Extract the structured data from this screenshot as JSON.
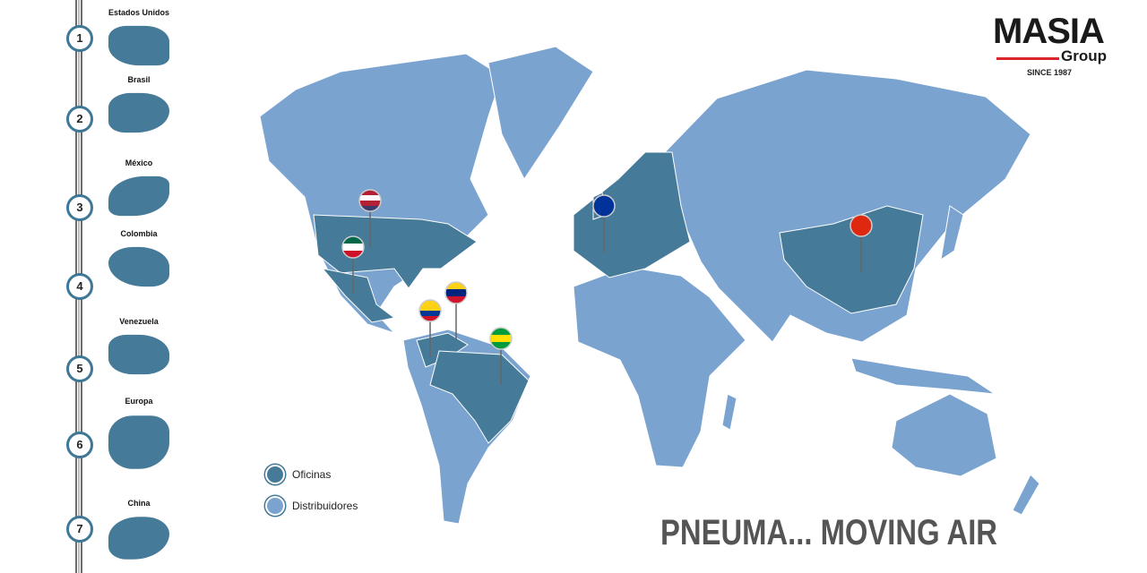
{
  "brand": {
    "name": "MASIA",
    "sub": "Group",
    "since": "SINCE 1987",
    "accent": "#d9262c"
  },
  "colors": {
    "offices": "#457a99",
    "distributors": "#7aa3cf"
  },
  "timeline": [
    {
      "num": "1",
      "label": "Estados Unidos"
    },
    {
      "num": "2",
      "label": "Brasil"
    },
    {
      "num": "3",
      "label": "México"
    },
    {
      "num": "4",
      "label": "Colombia"
    },
    {
      "num": "5",
      "label": "Venezuela"
    },
    {
      "num": "6",
      "label": "Europa"
    },
    {
      "num": "7",
      "label": "China"
    }
  ],
  "legend": {
    "offices": "Oficinas",
    "distributors": "Distribuidores"
  },
  "pins": [
    "usa-flag",
    "mexico-flag",
    "colombia-flag",
    "venezuela-flag",
    "brazil-flag",
    "eu-flag",
    "china-flag"
  ],
  "tagline": "PNEUMA... MOVING AIR"
}
